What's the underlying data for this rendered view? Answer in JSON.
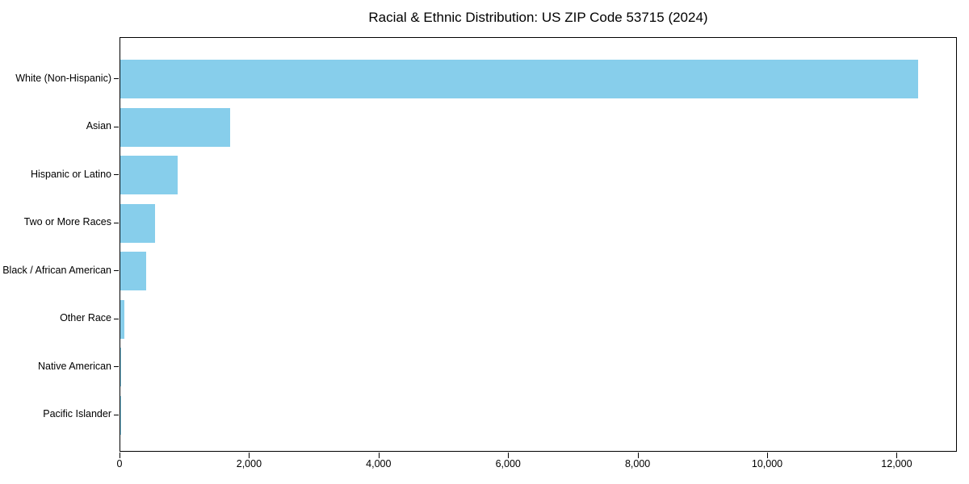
{
  "chart_data": {
    "type": "bar",
    "orientation": "horizontal",
    "title": "Racial & Ethnic Distribution: US ZIP Code 53715 (2024)",
    "categories": [
      "White (Non-Hispanic)",
      "Asian",
      "Hispanic or Latino",
      "Two or More Races",
      "Black / African American",
      "Other Race",
      "Native American",
      "Pacific Islander"
    ],
    "values": [
      12320,
      1700,
      890,
      535,
      400,
      60,
      12,
      4
    ],
    "x_ticks": [
      0,
      2000,
      4000,
      6000,
      8000,
      10000,
      12000
    ],
    "x_tick_labels": [
      "0",
      "2,000",
      "4,000",
      "6,000",
      "8,000",
      "10,000",
      "12,000"
    ],
    "xlim": [
      0,
      12930
    ],
    "xlabel": "",
    "ylabel": "",
    "bar_color": "#87CEEB",
    "grid": false,
    "legend": "none",
    "background_color": "#ffffff"
  }
}
